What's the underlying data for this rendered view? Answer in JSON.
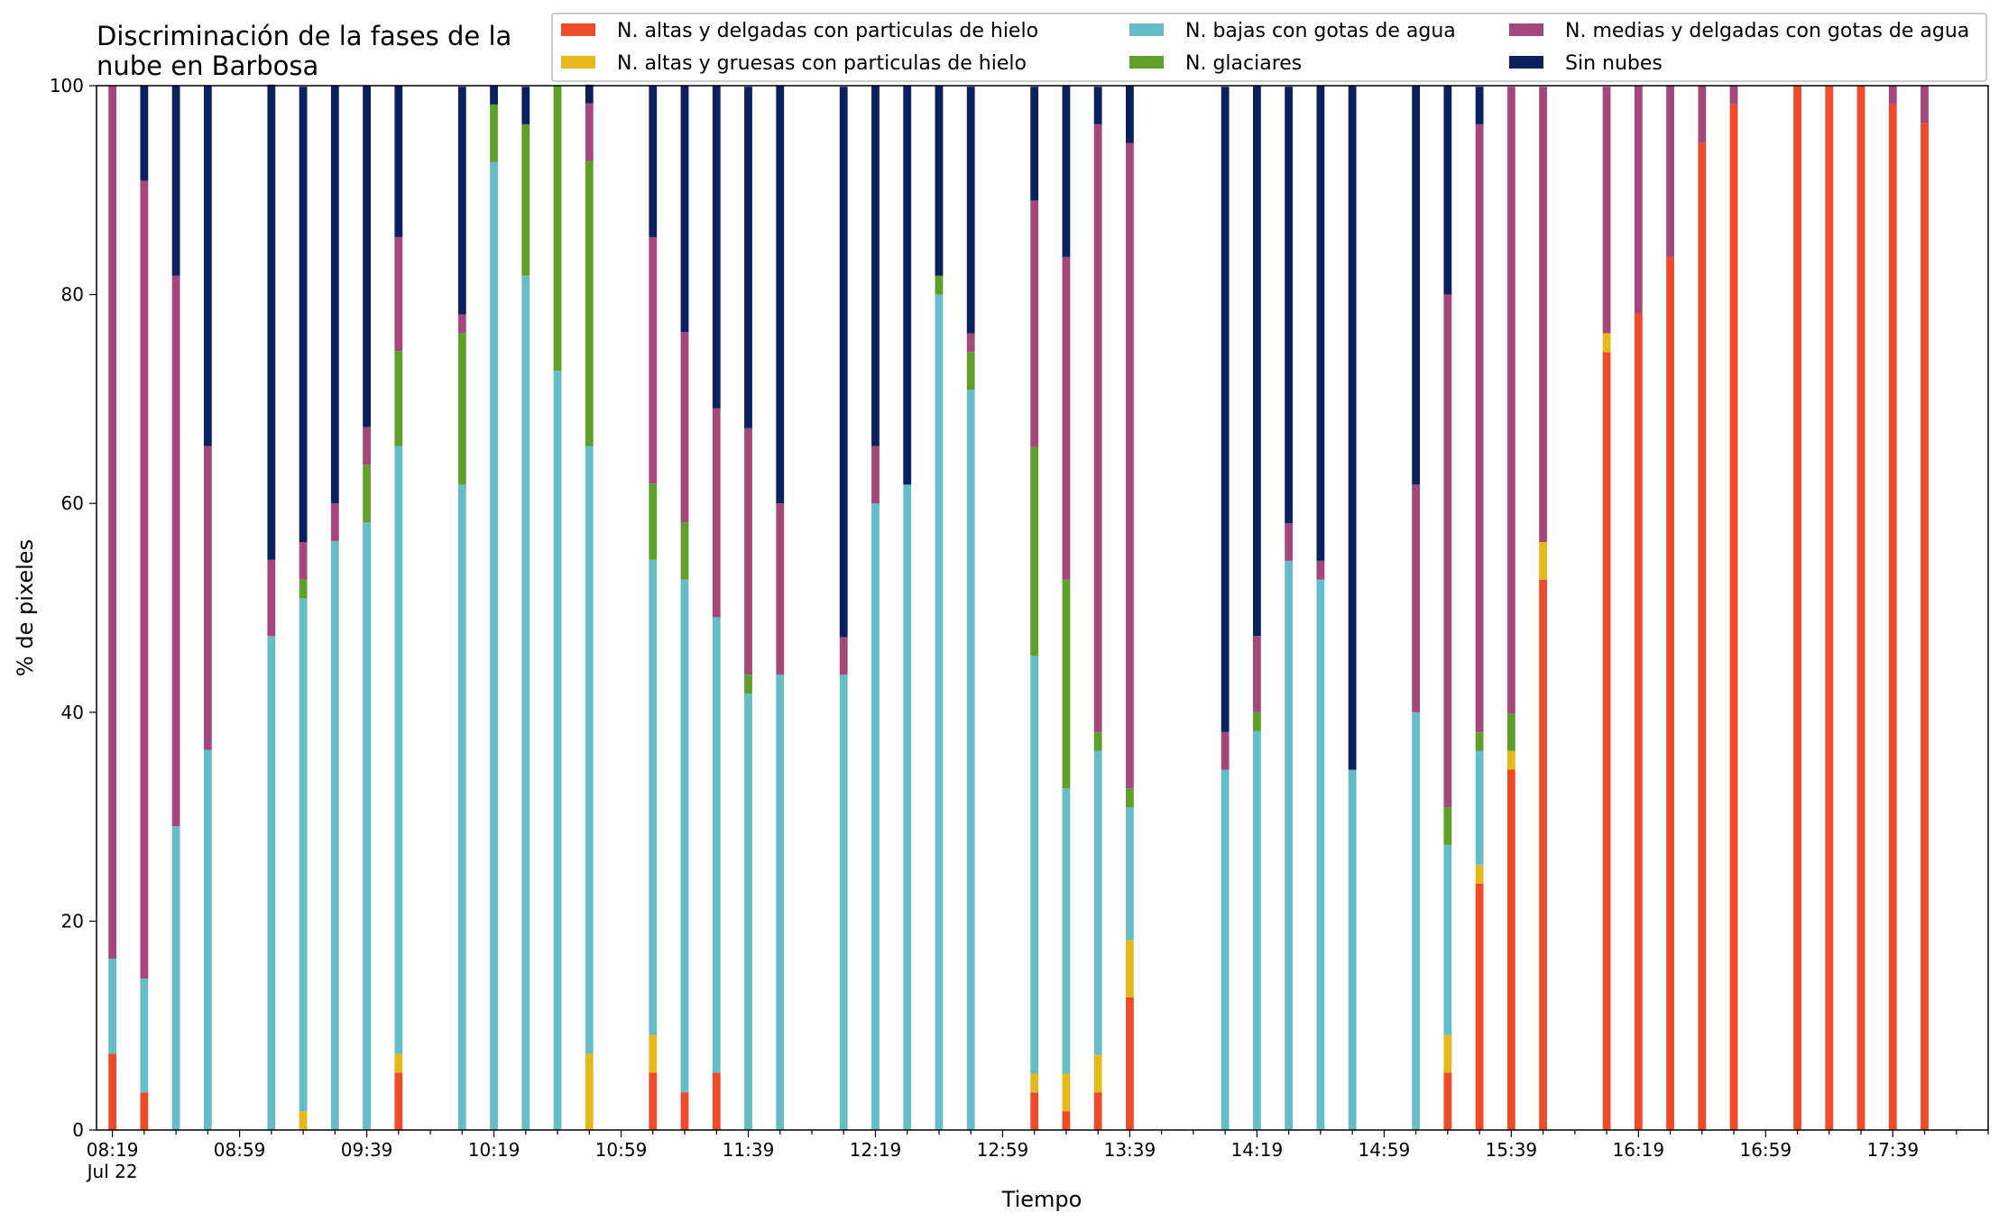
{
  "chart_data": {
    "type": "bar",
    "stacked": true,
    "title": "Discriminación de la fases de la nube en Barbosa",
    "title_lines": [
      "Discriminación de la fases de la",
      "nube en Barbosa"
    ],
    "xlabel": "Tiempo",
    "ylabel": "% de pixeles",
    "ylim": [
      0,
      100
    ],
    "yticks": [
      0,
      20,
      40,
      60,
      80,
      100
    ],
    "x_start": "08:19",
    "x_start_date": "Jul 22",
    "x_step_minutes": 5,
    "xlim_minutes": [
      -5,
      590
    ],
    "x_major_tick_labels": [
      "08:19",
      "08:59",
      "09:39",
      "10:19",
      "10:59",
      "11:39",
      "12:19",
      "12:59",
      "13:39",
      "14:19",
      "14:59",
      "15:39",
      "16:19",
      "16:59",
      "17:39"
    ],
    "x_minor_interval_minutes": 10,
    "grid": false,
    "legend_position": "top-right",
    "legend_columns": 3,
    "x_times": [
      "08:19",
      "08:29",
      "08:39",
      "08:49",
      "09:09",
      "09:19",
      "09:29",
      "09:39",
      "09:49",
      "10:09",
      "10:19",
      "10:29",
      "10:39",
      "10:49",
      "11:09",
      "11:19",
      "11:29",
      "11:39",
      "11:49",
      "12:09",
      "12:19",
      "12:29",
      "12:39",
      "12:49",
      "13:09",
      "13:19",
      "13:29",
      "13:39",
      "14:09",
      "14:19",
      "14:29",
      "14:39",
      "14:49",
      "15:09",
      "15:19",
      "15:29",
      "15:39",
      "15:49",
      "16:09",
      "16:19",
      "16:29",
      "16:39",
      "16:49",
      "17:09",
      "17:19",
      "17:29",
      "17:39",
      "17:49"
    ],
    "series": [
      {
        "name": "N. altas y delgadas con particulas de hielo",
        "color": "#ee4b2b",
        "values": [
          7.3,
          3.6,
          0,
          0,
          0,
          0,
          0,
          0,
          5.5,
          0,
          0,
          0,
          0,
          0,
          5.5,
          3.6,
          5.5,
          0,
          0,
          0,
          0,
          0,
          0,
          0,
          3.6,
          1.8,
          3.6,
          12.7,
          0,
          0,
          0,
          0,
          0,
          0,
          5.5,
          23.6,
          34.5,
          52.7,
          74.5,
          78.2,
          83.6,
          94.5,
          98.2,
          100,
          100,
          100,
          98.2,
          96.4
        ]
      },
      {
        "name": "N. altas y gruesas con particulas de hielo",
        "color": "#e6b81b",
        "values": [
          0,
          0,
          0,
          0,
          0,
          1.8,
          0,
          0,
          1.8,
          0,
          0,
          0,
          0,
          7.3,
          3.6,
          0,
          0,
          0,
          0,
          0,
          0,
          0,
          0,
          0,
          1.8,
          3.6,
          3.6,
          5.5,
          0,
          0,
          0,
          0,
          0,
          0,
          3.6,
          1.8,
          1.8,
          3.6,
          1.8,
          0,
          0,
          0,
          0,
          0,
          0,
          0,
          0,
          0
        ]
      },
      {
        "name": "N. bajas con gotas de agua",
        "color": "#66bdc8",
        "values": [
          9.1,
          10.9,
          29.1,
          36.4,
          47.3,
          49.1,
          56.4,
          58.2,
          58.2,
          61.8,
          92.7,
          81.8,
          72.7,
          58.2,
          45.5,
          49.1,
          43.6,
          41.8,
          43.6,
          43.6,
          60,
          61.8,
          80,
          70.9,
          40,
          27.3,
          29.1,
          12.7,
          34.5,
          38.2,
          54.5,
          52.7,
          34.5,
          40,
          18.2,
          10.9,
          0,
          0,
          0,
          0,
          0,
          0,
          0,
          0,
          0,
          0,
          0,
          0
        ]
      },
      {
        "name": "N. glaciares",
        "color": "#5fa02a",
        "values": [
          0,
          0,
          0,
          0,
          0,
          1.8,
          0,
          5.5,
          9.1,
          14.5,
          5.5,
          14.5,
          27.3,
          27.3,
          7.3,
          5.5,
          0,
          1.8,
          0,
          0,
          0,
          0,
          1.8,
          3.6,
          20,
          20,
          1.8,
          1.8,
          0,
          1.8,
          0,
          0,
          0,
          0,
          3.6,
          1.8,
          3.6,
          0,
          0,
          0,
          0,
          0,
          0,
          0,
          0,
          0,
          0,
          0
        ]
      },
      {
        "name": "N. medias y delgadas con gotas de agua",
        "color": "#a4477c",
        "values": [
          83.6,
          76.4,
          52.7,
          29.1,
          7.3,
          3.6,
          3.6,
          3.6,
          10.9,
          1.8,
          0,
          0,
          0,
          5.5,
          23.6,
          18.2,
          20,
          23.6,
          16.4,
          3.6,
          5.5,
          0,
          0,
          1.8,
          23.6,
          30.9,
          58.2,
          61.8,
          3.6,
          7.3,
          3.6,
          1.8,
          0,
          21.8,
          49.1,
          58.2,
          60,
          43.6,
          23.6,
          21.8,
          16.4,
          5.5,
          1.8,
          0,
          0,
          0,
          1.8,
          3.6
        ]
      },
      {
        "name": "Sin nubes",
        "color": "#0b205e",
        "values": [
          0,
          9.1,
          18.2,
          34.5,
          45.5,
          43.6,
          40,
          32.7,
          14.5,
          21.8,
          1.8,
          3.6,
          0,
          1.8,
          14.5,
          23.6,
          30.9,
          32.7,
          40,
          52.7,
          34.5,
          38.2,
          18.2,
          23.6,
          10.9,
          16.4,
          3.6,
          5.5,
          61.8,
          52.7,
          41.8,
          45.5,
          65.5,
          38.2,
          20,
          3.6,
          0,
          0,
          0,
          0,
          0,
          0,
          0,
          0,
          0,
          0,
          0,
          0
        ]
      }
    ]
  }
}
